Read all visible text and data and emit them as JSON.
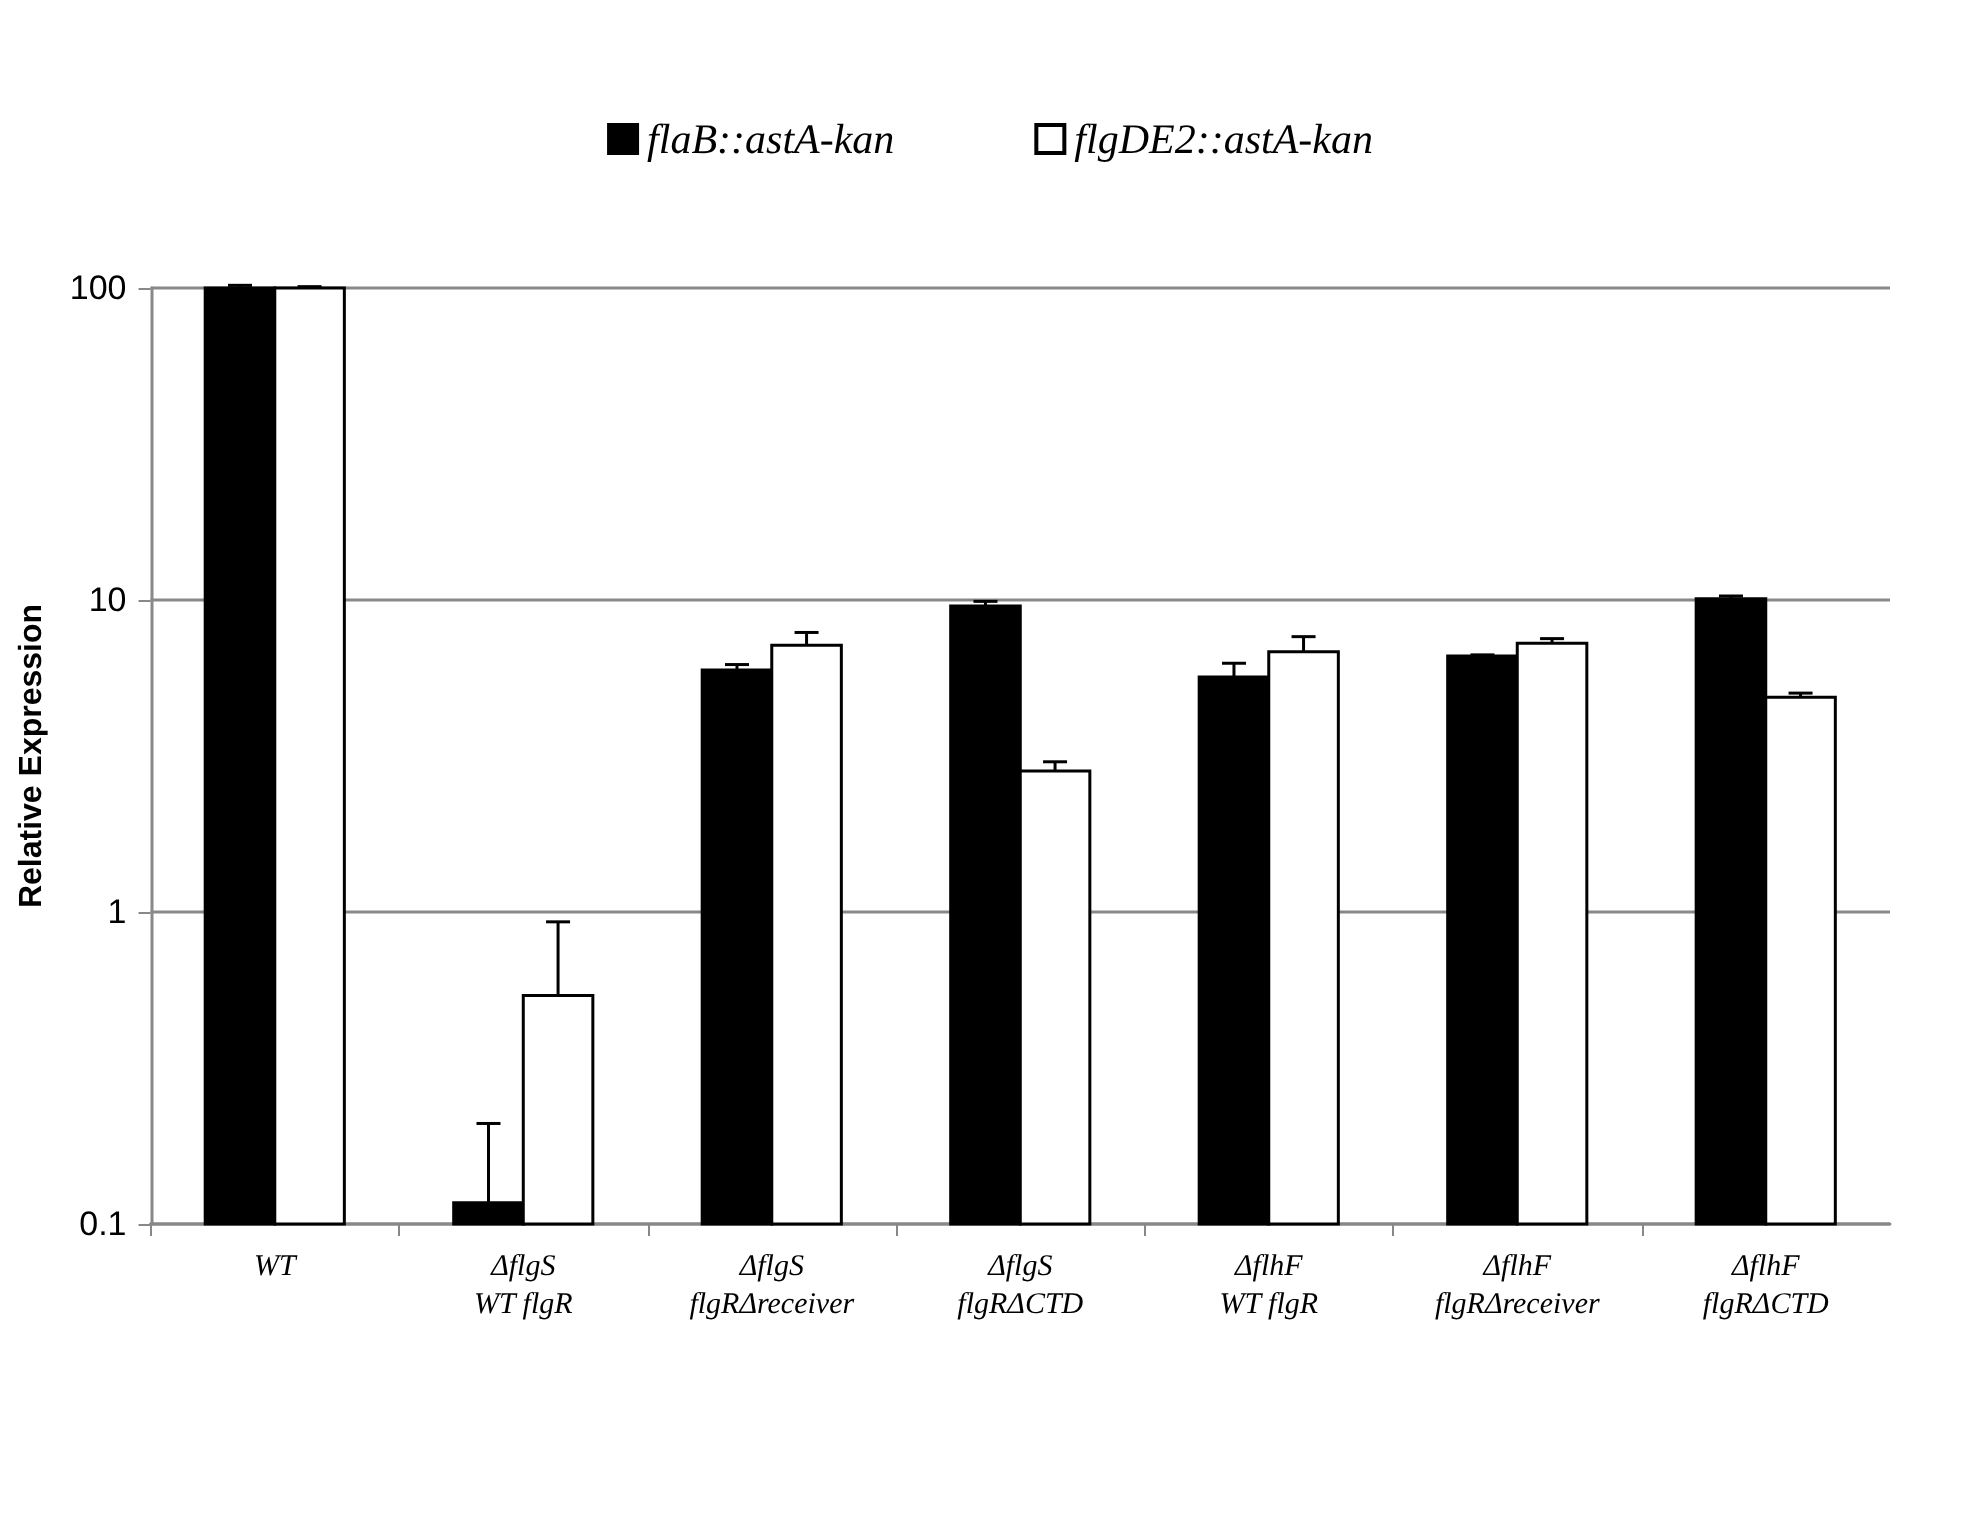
{
  "chart_data": {
    "type": "bar",
    "categories": [
      "WT",
      "ΔflgS\nWT flgR",
      "ΔflgS\nflgRΔreceiver",
      "ΔflgS\nflgRΔCTD",
      "ΔflhF\nWT flgR",
      "ΔflhF\nflgRΔreceiver",
      "ΔflhF\nflgRΔCTD"
    ],
    "series": [
      {
        "name": "flaB::astA-kan",
        "color": "#000000",
        "values": [
          100,
          0.117,
          5.97,
          9.57,
          5.66,
          6.62,
          10.1
        ],
        "errors": [
          [
            100,
            102
          ],
          [
            0.117,
            0.21
          ],
          [
            5.97,
            6.21
          ],
          [
            9.57,
            9.9
          ],
          [
            5.66,
            6.27
          ],
          [
            6.62,
            6.67
          ],
          [
            10.1,
            10.3
          ]
        ]
      },
      {
        "name": "flgDE2::astA-kan",
        "color": "#ffffff",
        "values": [
          100,
          0.54,
          7.16,
          2.83,
          6.82,
          7.27,
          4.88
        ],
        "errors": [
          [
            100,
            101
          ],
          [
            0.54,
            0.93
          ],
          [
            7.16,
            7.87
          ],
          [
            2.83,
            3.03
          ],
          [
            6.82,
            7.63
          ],
          [
            7.27,
            7.52
          ],
          [
            4.88,
            5.03
          ]
        ]
      }
    ],
    "ylabel": "Relative Expression",
    "log": "y",
    "ylim": [
      0.1,
      100
    ],
    "yticks": [
      0.1,
      1,
      10,
      100
    ],
    "grid": "y",
    "legend": "top"
  }
}
